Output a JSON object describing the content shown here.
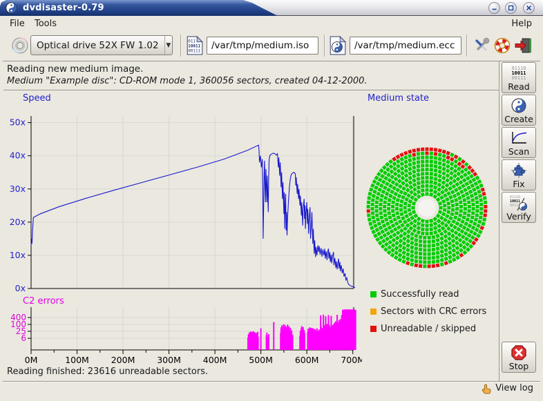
{
  "window": {
    "title": "dvdisaster-0.79"
  },
  "menubar": {
    "items": [
      "File",
      "Tools"
    ],
    "right_items": [
      "Help"
    ]
  },
  "toolbar": {
    "drive_selector": {
      "value": "Optical drive 52X FW 1.02"
    },
    "iso_field": {
      "value": "/var/tmp/medium.iso"
    },
    "ecc_field": {
      "value": "/var/tmp/medium.ecc"
    }
  },
  "icons": {
    "binary_lines": [
      "01110",
      "10011",
      "00111"
    ],
    "iso_doc_lines": [
      "011",
      "10011",
      "00111"
    ]
  },
  "header": {
    "line1": "Reading new medium image.",
    "line2": "Medium \"Example disc\": CD-ROM mode 1, 360056 sectors, created 04-12-2000."
  },
  "sidebar": {
    "buttons": [
      {
        "label": "Read"
      },
      {
        "label": "Create"
      },
      {
        "label": "Scan"
      },
      {
        "label": "Fix"
      },
      {
        "label": "Verify"
      }
    ],
    "stop": {
      "label": "Stop"
    }
  },
  "legend": {
    "items": [
      {
        "label": "Successfully read",
        "color": "#00cc00"
      },
      {
        "label": "Sectors with CRC errors",
        "color": "#f2a60d"
      },
      {
        "label": "Unreadable / skipped",
        "color": "#e01212"
      }
    ]
  },
  "statusbar": {
    "text": "Reading finished: 23616 unreadable sectors."
  },
  "footer": {
    "view_log": "View log"
  },
  "chart_data": [
    {
      "type": "line",
      "title": "Speed",
      "series_color": "#1818cc",
      "axis_label_color": "#2222cc",
      "xlim": [
        0,
        702
      ],
      "ylim": [
        0,
        52
      ],
      "xticks": [
        0,
        100,
        200,
        300,
        400,
        500,
        600,
        700
      ],
      "xtick_labels": [
        "0M",
        "100M",
        "200M",
        "300M",
        "400M",
        "500M",
        "600M",
        "700M"
      ],
      "xminor_step": 50,
      "yticks": [
        0,
        10,
        20,
        30,
        40,
        50
      ],
      "ytick_labels": [
        "0x",
        "10x",
        "20x",
        "30x",
        "40x",
        "50x"
      ],
      "grid": true,
      "points": [
        [
          0,
          13
        ],
        [
          1,
          15
        ],
        [
          2,
          13.5
        ],
        [
          3,
          17
        ],
        [
          5,
          21.4
        ],
        [
          20,
          22.5
        ],
        [
          60,
          24.6
        ],
        [
          120,
          27.2
        ],
        [
          180,
          29.6
        ],
        [
          240,
          31.9
        ],
        [
          300,
          34.2
        ],
        [
          360,
          36.5
        ],
        [
          420,
          39
        ],
        [
          470,
          41.6
        ],
        [
          495,
          43.2
        ],
        [
          496,
          41.5
        ],
        [
          497,
          38
        ],
        [
          499,
          40
        ],
        [
          501,
          36.5
        ],
        [
          503,
          39
        ],
        [
          504,
          31
        ],
        [
          505,
          15
        ],
        [
          506,
          24
        ],
        [
          507,
          34
        ],
        [
          508,
          38.5
        ],
        [
          509,
          31
        ],
        [
          510,
          26
        ],
        [
          511,
          36
        ],
        [
          512,
          31
        ],
        [
          513,
          26
        ],
        [
          514,
          34
        ],
        [
          515,
          28
        ],
        [
          516,
          23
        ],
        [
          517,
          33
        ],
        [
          518,
          39
        ],
        [
          520,
          40.2
        ],
        [
          523,
          40.5
        ],
        [
          527,
          40.8
        ],
        [
          531,
          40.6
        ],
        [
          534,
          40.2
        ],
        [
          536,
          40.6
        ],
        [
          538,
          36.5
        ],
        [
          539,
          39.5
        ],
        [
          541,
          34
        ],
        [
          542,
          38
        ],
        [
          544,
          30.5
        ],
        [
          545,
          35
        ],
        [
          547,
          27
        ],
        [
          548,
          32
        ],
        [
          550,
          22.5
        ],
        [
          551,
          29
        ],
        [
          552,
          18
        ],
        [
          553,
          25
        ],
        [
          554,
          28.5
        ],
        [
          555,
          17.5
        ],
        [
          556,
          23
        ],
        [
          557,
          16
        ],
        [
          558,
          21
        ],
        [
          560,
          26
        ],
        [
          562,
          30.5
        ],
        [
          564,
          33
        ],
        [
          566,
          34.3
        ],
        [
          569,
          34.8
        ],
        [
          572,
          35
        ],
        [
          575,
          34.6
        ],
        [
          576,
          31
        ],
        [
          577,
          33.5
        ],
        [
          579,
          28.5
        ],
        [
          580,
          31.5
        ],
        [
          582,
          27
        ],
        [
          583,
          30
        ],
        [
          585,
          25
        ],
        [
          586,
          28
        ],
        [
          588,
          22
        ],
        [
          589,
          26
        ],
        [
          591,
          19
        ],
        [
          592,
          24
        ],
        [
          594,
          27
        ],
        [
          595,
          21
        ],
        [
          596,
          25
        ],
        [
          597,
          18
        ],
        [
          598,
          22.5
        ],
        [
          600,
          26
        ],
        [
          601,
          19.5
        ],
        [
          602,
          24
        ],
        [
          604,
          16.5
        ],
        [
          605,
          21
        ],
        [
          607,
          24.5
        ],
        [
          608,
          15
        ],
        [
          610,
          19.5
        ],
        [
          611,
          23
        ],
        [
          613,
          13.5
        ],
        [
          614,
          18
        ],
        [
          616,
          10.5
        ],
        [
          617,
          14.5
        ],
        [
          619,
          9.5
        ],
        [
          620,
          12.5
        ],
        [
          622,
          10
        ],
        [
          624,
          13
        ],
        [
          626,
          11
        ],
        [
          627,
          12.8
        ],
        [
          629,
          10.2
        ],
        [
          631,
          12.2
        ],
        [
          633,
          9.6
        ],
        [
          635,
          11.8
        ],
        [
          637,
          10
        ],
        [
          639,
          12
        ],
        [
          640,
          9
        ],
        [
          642,
          11.2
        ],
        [
          644,
          8.6
        ],
        [
          645,
          10.8
        ],
        [
          647,
          12
        ],
        [
          648,
          9
        ],
        [
          650,
          11
        ],
        [
          651,
          8
        ],
        [
          653,
          10.2
        ],
        [
          654,
          7.6
        ],
        [
          656,
          9.8
        ],
        [
          658,
          11
        ],
        [
          659,
          7
        ],
        [
          661,
          9.2
        ],
        [
          663,
          6.2
        ],
        [
          664,
          8.2
        ],
        [
          666,
          5.8
        ],
        [
          667,
          7.2
        ],
        [
          669,
          9
        ],
        [
          670,
          6
        ],
        [
          672,
          8
        ],
        [
          673,
          5.2
        ],
        [
          675,
          7
        ],
        [
          677,
          4.6
        ],
        [
          679,
          6
        ],
        [
          681,
          3.6
        ],
        [
          683,
          4.6
        ],
        [
          685,
          2.6
        ],
        [
          687,
          3.2
        ],
        [
          689,
          1.8
        ],
        [
          691,
          1.2
        ],
        [
          694,
          0.9
        ],
        [
          697,
          0.7
        ],
        [
          701,
          0.5
        ],
        [
          705,
          0.3
        ]
      ]
    },
    {
      "type": "bar",
      "title": "C2 errors",
      "series_color": "#ff00ff",
      "axis_label_color": "#e000e0",
      "yscale": "log",
      "yticks": [
        6,
        25,
        100,
        400
      ],
      "xlim": [
        0,
        702
      ],
      "bars": [
        [
          472,
          7
        ],
        [
          473,
          14
        ],
        [
          475,
          20
        ],
        [
          476,
          9
        ],
        [
          478,
          24
        ],
        [
          479,
          16
        ],
        [
          481,
          22
        ],
        [
          482,
          8
        ],
        [
          484,
          25
        ],
        [
          485,
          14
        ],
        [
          487,
          20
        ],
        [
          488,
          7
        ],
        [
          490,
          18
        ],
        [
          491,
          10
        ],
        [
          493,
          22
        ],
        [
          494,
          8
        ],
        [
          500,
          45
        ],
        [
          512,
          11
        ],
        [
          513,
          19
        ],
        [
          515,
          8
        ],
        [
          517,
          14
        ],
        [
          528,
          160
        ],
        [
          543,
          18
        ],
        [
          544,
          55
        ],
        [
          546,
          85
        ],
        [
          547,
          35
        ],
        [
          549,
          70
        ],
        [
          550,
          105
        ],
        [
          552,
          45
        ],
        [
          553,
          80
        ],
        [
          555,
          28
        ],
        [
          556,
          60
        ],
        [
          558,
          95
        ],
        [
          559,
          42
        ],
        [
          561,
          70
        ],
        [
          562,
          25
        ],
        [
          564,
          50
        ],
        [
          565,
          15
        ],
        [
          567,
          30
        ],
        [
          569,
          12
        ],
        [
          585,
          10
        ],
        [
          586,
          28
        ],
        [
          588,
          48
        ],
        [
          589,
          70
        ],
        [
          591,
          38
        ],
        [
          592,
          58
        ],
        [
          594,
          32
        ],
        [
          595,
          18
        ],
        [
          602,
          22
        ],
        [
          603,
          42
        ],
        [
          605,
          28
        ],
        [
          606,
          55
        ],
        [
          608,
          38
        ],
        [
          609,
          50
        ],
        [
          611,
          32
        ],
        [
          612,
          48
        ],
        [
          614,
          26
        ],
        [
          615,
          42
        ],
        [
          617,
          22
        ],
        [
          618,
          38
        ],
        [
          620,
          28
        ],
        [
          622,
          45
        ],
        [
          624,
          24
        ],
        [
          626,
          36
        ],
        [
          628,
          30
        ],
        [
          630,
          620
        ],
        [
          631,
          70
        ],
        [
          633,
          48
        ],
        [
          634,
          26
        ],
        [
          636,
          720
        ],
        [
          637,
          55
        ],
        [
          639,
          85
        ],
        [
          641,
          520
        ],
        [
          642,
          65
        ],
        [
          644,
          110
        ],
        [
          646,
          40
        ],
        [
          647,
          660
        ],
        [
          649,
          85
        ],
        [
          650,
          55
        ],
        [
          652,
          36
        ],
        [
          653,
          560
        ],
        [
          655,
          75
        ],
        [
          657,
          95
        ],
        [
          658,
          48
        ],
        [
          660,
          140
        ],
        [
          661,
          85
        ],
        [
          663,
          190
        ],
        [
          665,
          115
        ],
        [
          666,
          700
        ],
        [
          668,
          140
        ],
        [
          670,
          240
        ],
        [
          671,
          170
        ],
        [
          673,
          290
        ],
        [
          675,
          200
        ],
        [
          676,
          680
        ],
        [
          678,
          1800
        ],
        [
          679,
          2000
        ],
        [
          681,
          1900
        ],
        [
          682,
          2100
        ],
        [
          684,
          2000
        ],
        [
          686,
          2050
        ],
        [
          687,
          1950
        ],
        [
          689,
          2100
        ],
        [
          691,
          2000
        ],
        [
          693,
          2050
        ],
        [
          694,
          1900
        ],
        [
          696,
          2100
        ],
        [
          698,
          2000
        ],
        [
          700,
          2050
        ],
        [
          702,
          1950
        ],
        [
          704,
          2000
        ],
        [
          706,
          1900
        ]
      ]
    },
    {
      "type": "heatmap",
      "layout": "disc",
      "title": "Medium state",
      "states": {
        "good": "#00cc00",
        "crc": "#f2a60d",
        "bad": "#e01212"
      },
      "rings": 12,
      "ring_start_radius": 20,
      "ring_step": 5.9,
      "cell_size": 5,
      "hole_radius": 13,
      "red_arcs": [
        {
          "ring": 11,
          "from": -38,
          "to": 30,
          "density": 0.92
        },
        {
          "ring": 11,
          "from": 30,
          "to": 95,
          "density": 0.6
        },
        {
          "ring": 11,
          "from": 95,
          "to": 152,
          "density": 0.5
        },
        {
          "ring": 10,
          "from": -15,
          "to": 42,
          "density": 0.35
        },
        {
          "ring": 11,
          "from": 160,
          "to": 210,
          "density": 0.28
        },
        {
          "ring": 11,
          "from": 250,
          "to": 275,
          "density": 0.25
        },
        {
          "ring": 10,
          "from": 185,
          "to": 202,
          "density": 0.2
        }
      ]
    }
  ]
}
